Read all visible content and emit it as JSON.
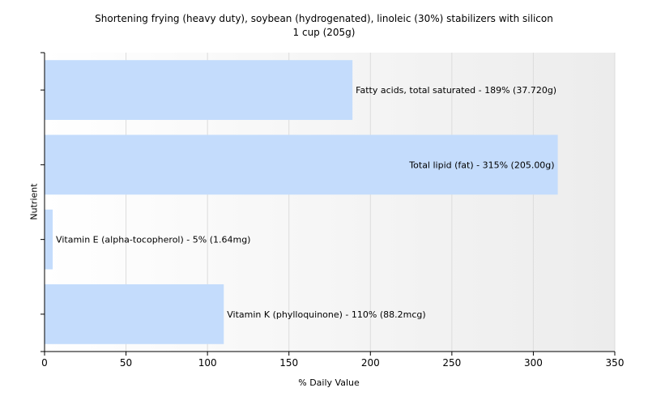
{
  "chart_data": {
    "type": "bar",
    "orientation": "horizontal",
    "title": "Shortening frying (heavy duty), soybean (hydrogenated), linoleic (30%) stabilizers with silicon",
    "subtitle": "1 cup (205g)",
    "xlabel": "% Daily Value",
    "ylabel": "Nutrient",
    "xlim": [
      0,
      350
    ],
    "x_ticks": [
      "0",
      "50",
      "100",
      "150",
      "200",
      "250",
      "300",
      "350"
    ],
    "grid": true,
    "bar_color": "#c4dcfc",
    "categories": [
      "Fatty acids, total saturated",
      "Total lipid (fat)",
      "Vitamin E (alpha-tocopherol)",
      "Vitamin K (phylloquinone)"
    ],
    "values": [
      189,
      315,
      5,
      110
    ],
    "labels": [
      "Fatty acids, total saturated - 189% (37.720g)",
      "Total lipid (fat) - 315% (205.00g)",
      "Vitamin E (alpha-tocopherol) - 5% (1.64mg)",
      "Vitamin K (phylloquinone) - 110% (88.2mcg)"
    ]
  }
}
